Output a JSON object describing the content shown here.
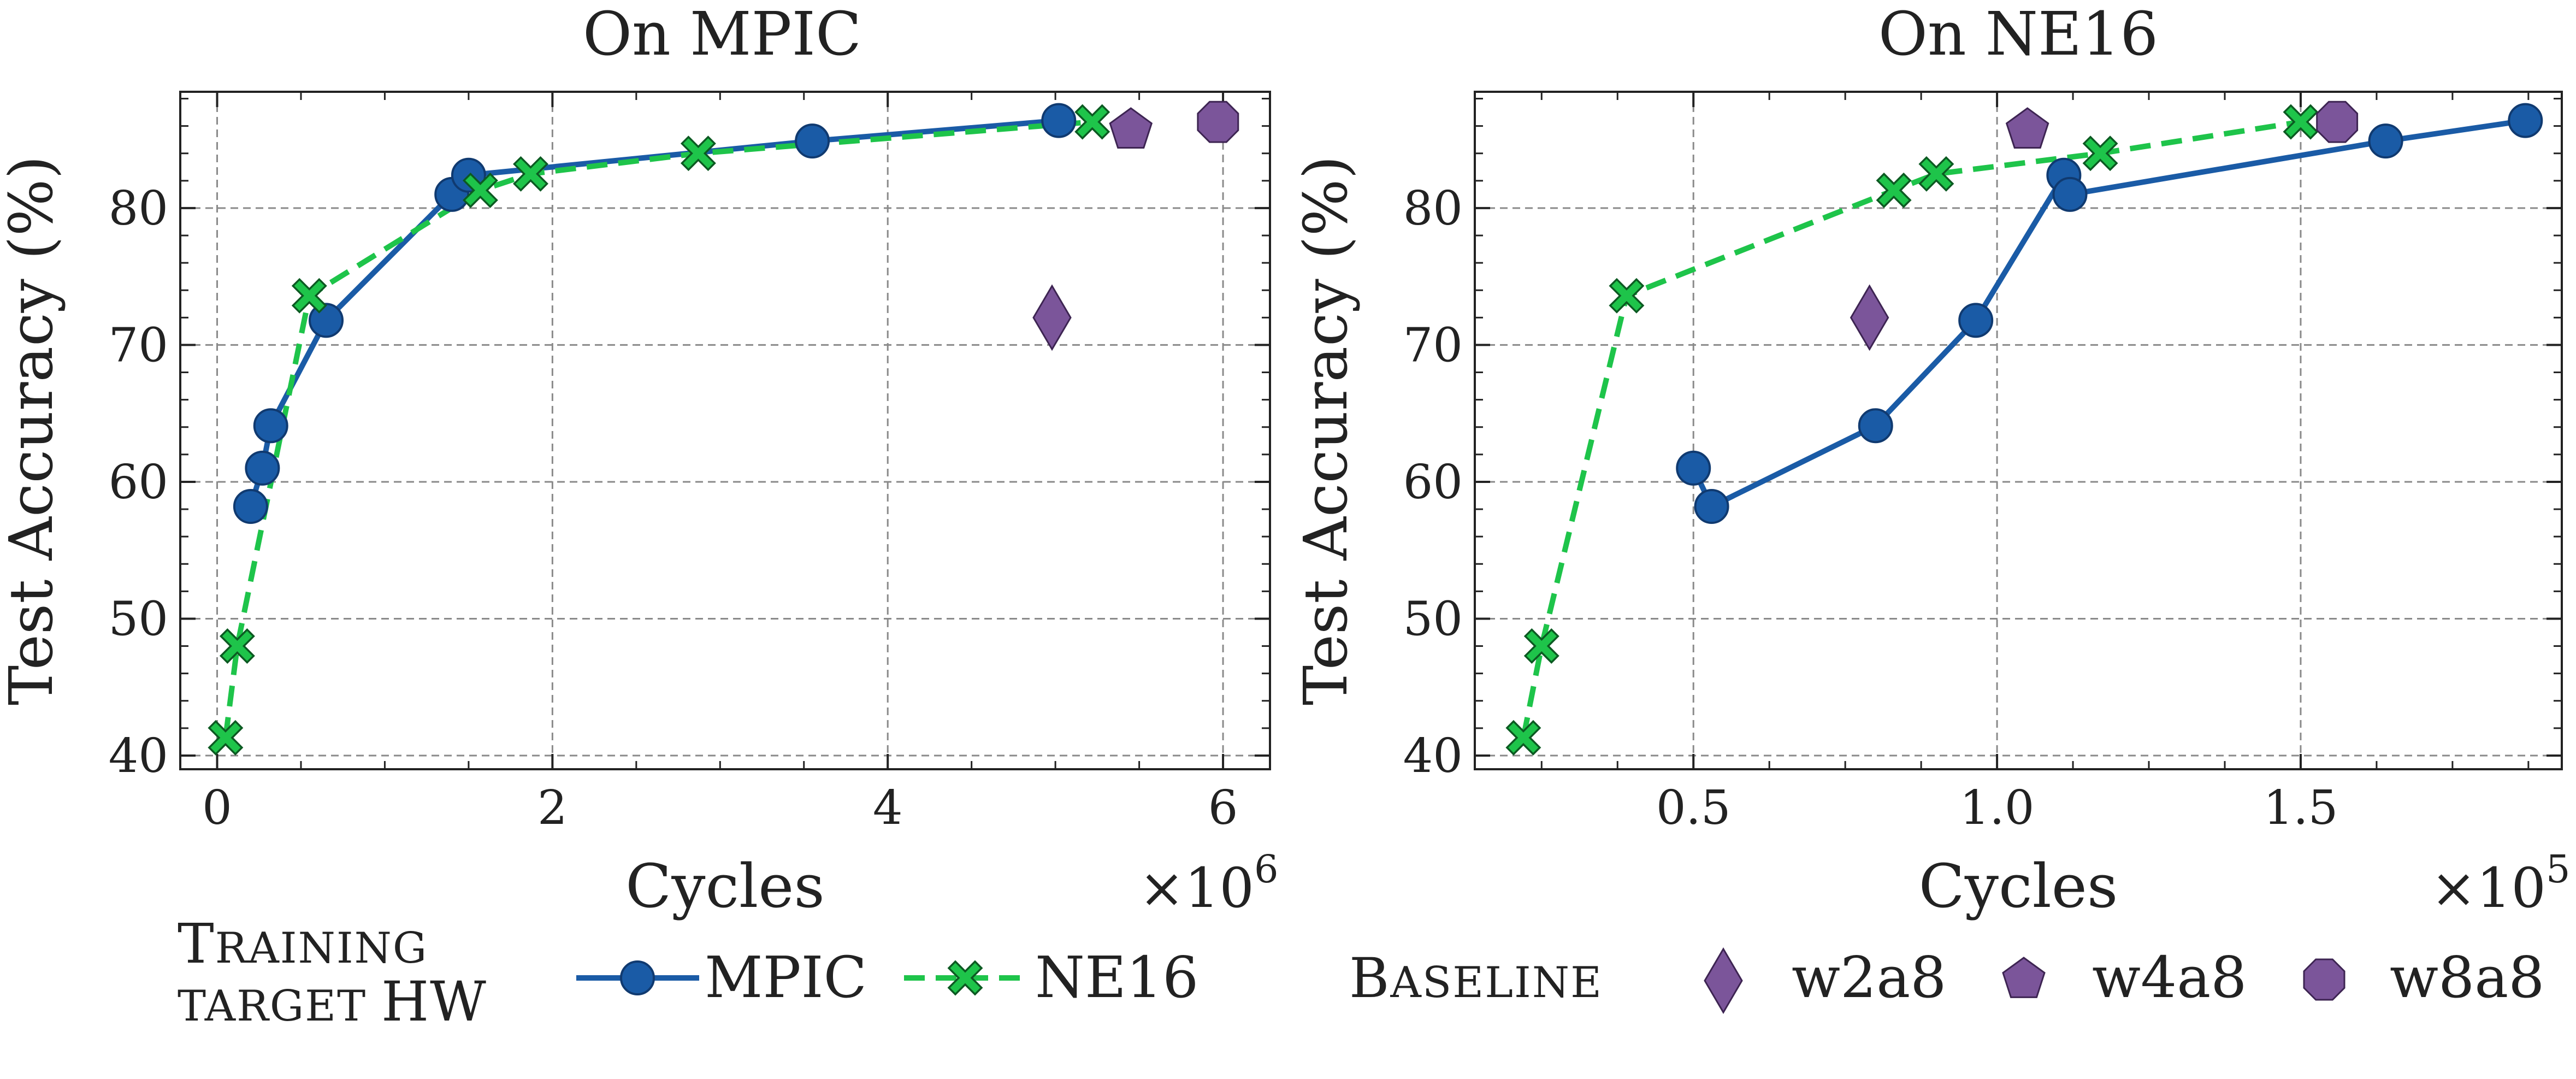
{
  "chart_data": [
    {
      "type": "line",
      "title": "On MPIC",
      "xlabel": "Cycles",
      "ylabel": "Test Accuracy (%)",
      "x_multiplier": "×10^6",
      "x_multiplier_base": "×10",
      "x_multiplier_exp": "6",
      "xlim": [
        -0.22,
        6.28
      ],
      "ylim": [
        39,
        88.5
      ],
      "x_ticks": [
        0,
        2,
        4,
        6
      ],
      "x_tick_labels": [
        "0",
        "2",
        "4",
        "6"
      ],
      "y_ticks": [
        40,
        50,
        60,
        70,
        80
      ],
      "y_tick_labels": [
        "40",
        "50",
        "60",
        "70",
        "80"
      ],
      "grid": true,
      "series": [
        {
          "name": "MPIC",
          "color": "#1a5ba6",
          "style": "solid",
          "marker": "circle",
          "points": [
            [
              0.2,
              58.2
            ],
            [
              0.27,
              61.0
            ],
            [
              0.32,
              64.1
            ],
            [
              0.65,
              71.8
            ],
            [
              1.4,
              81.0
            ],
            [
              1.5,
              82.4
            ],
            [
              3.55,
              84.9
            ],
            [
              5.02,
              86.4
            ]
          ]
        },
        {
          "name": "NE16",
          "color": "#1ec44a",
          "style": "dashed",
          "marker": "x",
          "points": [
            [
              0.05,
              41.3
            ],
            [
              0.12,
              48.0
            ],
            [
              0.55,
              73.6
            ],
            [
              1.57,
              81.3
            ],
            [
              1.87,
              82.5
            ],
            [
              2.87,
              84.0
            ],
            [
              5.22,
              86.3
            ]
          ]
        }
      ],
      "baselines": [
        {
          "name": "w2a8",
          "marker": "diamond",
          "x": 4.98,
          "y": 72.0
        },
        {
          "name": "w4a8",
          "marker": "pentagon",
          "x": 5.45,
          "y": 85.7
        },
        {
          "name": "w8a8",
          "marker": "octagon",
          "x": 5.97,
          "y": 86.3
        }
      ]
    },
    {
      "type": "line",
      "title": "On NE16",
      "xlabel": "Cycles",
      "ylabel": "Test Accuracy (%)",
      "x_multiplier": "×10^5",
      "x_multiplier_base": "×10",
      "x_multiplier_exp": "5",
      "xlim": [
        0.14,
        1.93
      ],
      "ylim": [
        39,
        88.5
      ],
      "x_ticks": [
        0.5,
        1.0,
        1.5
      ],
      "x_tick_labels": [
        "0.5",
        "1.0",
        "1.5"
      ],
      "y_ticks": [
        40,
        50,
        60,
        70,
        80
      ],
      "y_tick_labels": [
        "40",
        "50",
        "60",
        "70",
        "80"
      ],
      "grid": true,
      "series": [
        {
          "name": "MPIC",
          "color": "#1a5ba6",
          "style": "solid",
          "marker": "circle",
          "points": [
            [
              0.5,
              61.0
            ],
            [
              0.53,
              58.2
            ],
            [
              0.8,
              64.1
            ],
            [
              0.965,
              71.8
            ],
            [
              1.11,
              82.4
            ],
            [
              1.12,
              81.0
            ],
            [
              1.64,
              84.9
            ],
            [
              1.87,
              86.4
            ]
          ]
        },
        {
          "name": "NE16",
          "color": "#1ec44a",
          "style": "dashed",
          "marker": "x",
          "points": [
            [
              0.22,
              41.3
            ],
            [
              0.25,
              48.0
            ],
            [
              0.39,
              73.6
            ],
            [
              0.83,
              81.3
            ],
            [
              0.9,
              82.5
            ],
            [
              1.17,
              84.0
            ],
            [
              1.5,
              86.3
            ]
          ]
        }
      ],
      "baselines": [
        {
          "name": "w2a8",
          "marker": "diamond",
          "x": 0.79,
          "y": 72.0
        },
        {
          "name": "w4a8",
          "marker": "pentagon",
          "x": 1.05,
          "y": 85.7
        },
        {
          "name": "w8a8",
          "marker": "octagon",
          "x": 1.56,
          "y": 86.3
        }
      ]
    }
  ],
  "legend": {
    "training_title_line1": "Training",
    "training_title_line2": "target HW",
    "training_entries": [
      {
        "name": "MPIC",
        "color": "#1a5ba6",
        "marker": "circle",
        "style": "solid"
      },
      {
        "name": "NE16",
        "color": "#1ec44a",
        "marker": "x",
        "style": "dashed"
      }
    ],
    "baseline_title": "Baseline",
    "baseline_entries": [
      {
        "name": "w2a8",
        "marker": "diamond"
      },
      {
        "name": "w4a8",
        "marker": "pentagon"
      },
      {
        "name": "w8a8",
        "marker": "octagon"
      }
    ]
  },
  "colors": {
    "mpic": "#1a5ba6",
    "ne16": "#1ec44a",
    "baseline": "#7b559a",
    "grid": "#8a8a8a"
  }
}
